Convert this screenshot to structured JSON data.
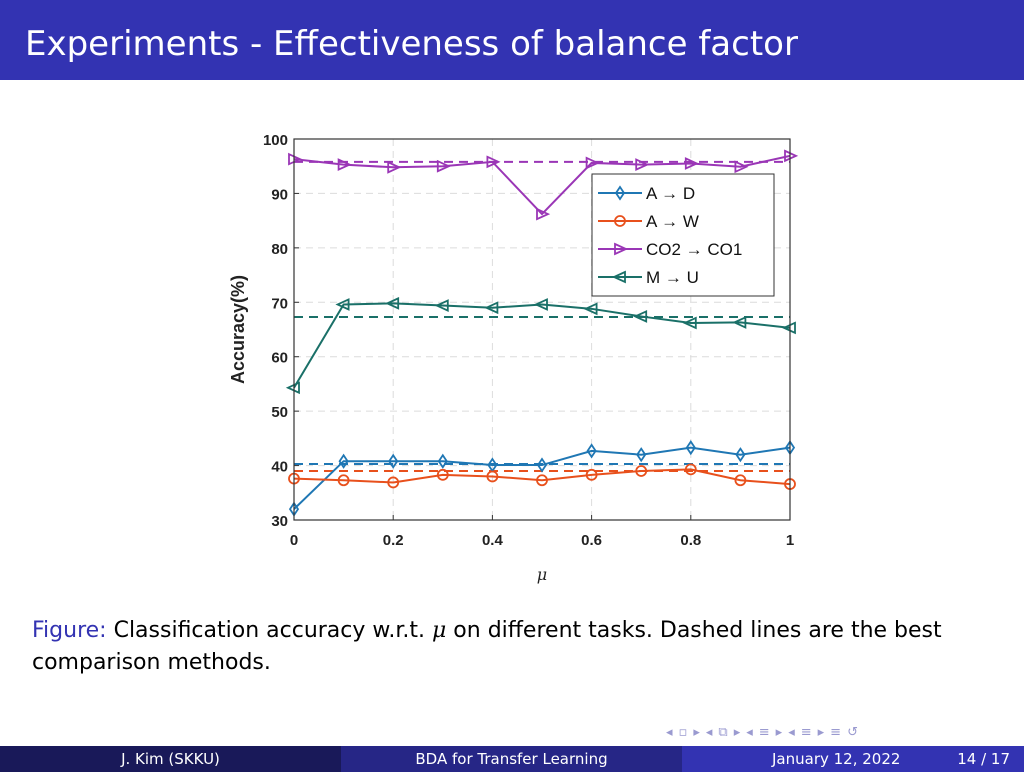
{
  "slide": {
    "title": "Experiments - Effectiveness of balance factor",
    "caption_label": "Figure:",
    "caption_text_1": " Classification accuracy w.r.t. ",
    "caption_mu": "μ",
    "caption_text_2": " on different tasks. Dashed lines are the best comparison methods."
  },
  "footer": {
    "author": "J. Kim  (SKKU)",
    "short_title": "BDA for Transfer Learning",
    "date": "January 12, 2022",
    "page": "14 / 17"
  },
  "nav": {
    "icons": [
      "nav-left-icon",
      "frame-icon",
      "nav-right-icon",
      "nav-left-icon",
      "section-icon",
      "nav-right-icon",
      "nav-left-icon",
      "subsection-icon",
      "nav-right-icon",
      "nav-left-icon",
      "subsection-icon",
      "nav-right-icon",
      "menu-icon",
      "search-icon"
    ]
  },
  "chart_data": {
    "type": "line",
    "xlabel": "μ",
    "ylabel": "Accuracy(%)",
    "xlim": [
      0,
      1
    ],
    "ylim": [
      30,
      100
    ],
    "xticks": [
      "0",
      "0.2",
      "0.4",
      "0.6",
      "0.8",
      "1"
    ],
    "yticks": [
      "30",
      "40",
      "50",
      "60",
      "70",
      "80",
      "90",
      "100"
    ],
    "grid": true,
    "legend_position": "top-right",
    "x": [
      0,
      0.1,
      0.2,
      0.3,
      0.4,
      0.5,
      0.6,
      0.7,
      0.8,
      0.9,
      1.0
    ],
    "series": [
      {
        "name": "A → D",
        "color": "#1f77b4",
        "marker": "diamond",
        "values": [
          32.0,
          40.8,
          40.8,
          40.8,
          40.1,
          40.1,
          42.7,
          42.0,
          43.3,
          42.0,
          43.3
        ],
        "baseline": 40.3
      },
      {
        "name": "A → W",
        "color": "#e8501c",
        "marker": "circle",
        "values": [
          37.6,
          37.3,
          36.9,
          38.3,
          38.0,
          37.3,
          38.3,
          39.0,
          39.3,
          37.3,
          36.6
        ],
        "baseline": 39.0
      },
      {
        "name": "CO2 → CO1",
        "color": "#9a36b6",
        "marker": "triangle-right",
        "values": [
          96.3,
          95.3,
          94.8,
          95.0,
          95.8,
          86.2,
          95.6,
          95.3,
          95.5,
          94.9,
          96.9
        ],
        "baseline": 95.8
      },
      {
        "name": "M → U",
        "color": "#1a7068",
        "marker": "triangle-left",
        "values": [
          54.3,
          69.6,
          69.8,
          69.4,
          69.0,
          69.6,
          68.8,
          67.4,
          66.2,
          66.3,
          65.3
        ],
        "baseline": 67.3
      }
    ]
  }
}
